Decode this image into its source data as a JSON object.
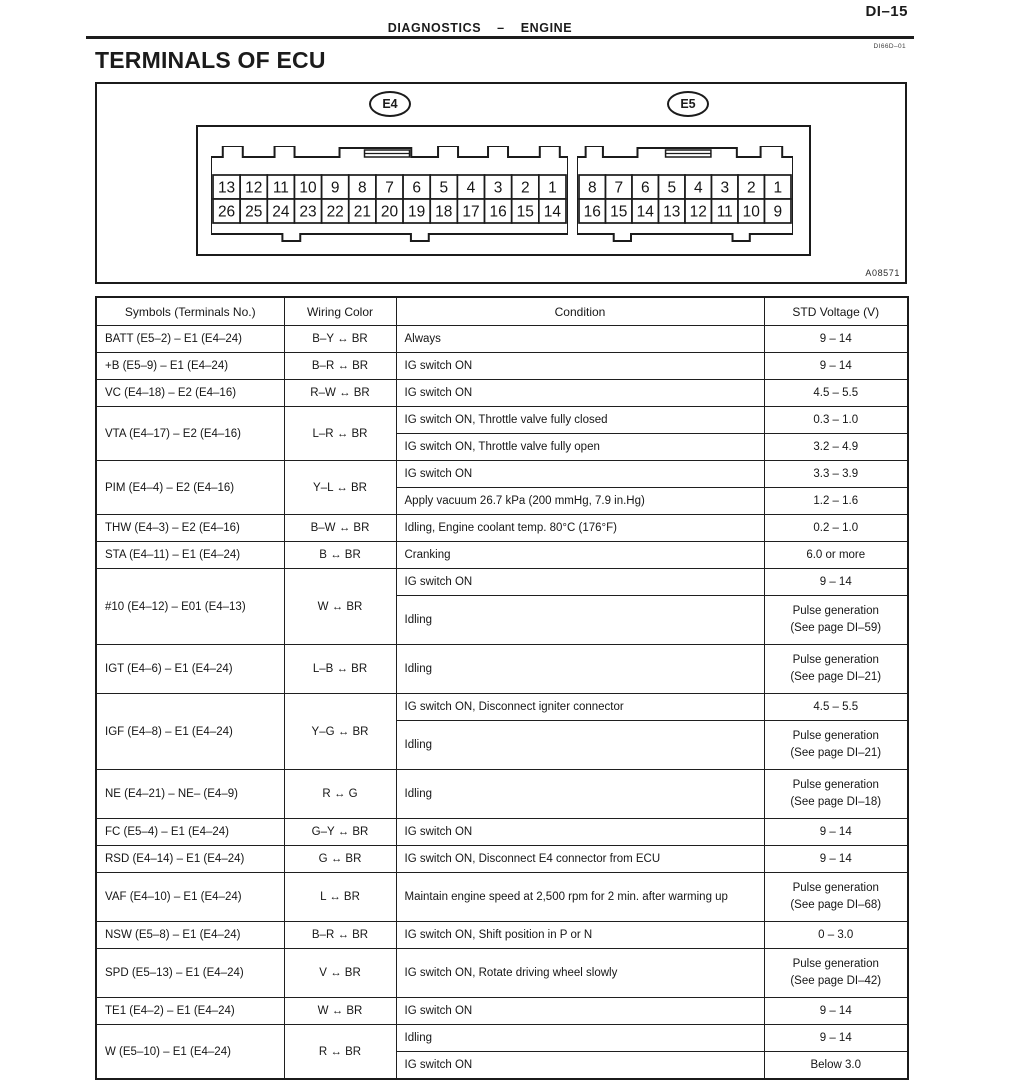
{
  "page": {
    "page_number": "DI–15",
    "section": "DIAGNOSTICS",
    "dash": "–",
    "subsection": "ENGINE",
    "doc_code": "DI66D–01",
    "title": "TERMINALS OF ECU"
  },
  "diagram": {
    "figure_code": "A08571",
    "connectors": [
      {
        "label": "E4",
        "rows": [
          [
            "13",
            "12",
            "11",
            "10",
            "9",
            "8",
            "7",
            "6",
            "5",
            "4",
            "3",
            "2",
            "1"
          ],
          [
            "26",
            "25",
            "24",
            "23",
            "22",
            "21",
            "20",
            "19",
            "18",
            "17",
            "16",
            "15",
            "14"
          ]
        ]
      },
      {
        "label": "E5",
        "rows": [
          [
            "8",
            "7",
            "6",
            "5",
            "4",
            "3",
            "2",
            "1"
          ],
          [
            "16",
            "15",
            "14",
            "13",
            "12",
            "11",
            "10",
            "9"
          ]
        ]
      }
    ]
  },
  "table": {
    "headers": [
      "Symbols (Terminals No.)",
      "Wiring Color",
      "Condition",
      "STD Voltage (V)"
    ],
    "rows": [
      {
        "symbol": "BATT (E5–2) – E1 (E4–24)",
        "wiring": "B–Y ↔ BR",
        "conditions": [
          {
            "condition": "Always",
            "voltage": [
              "9 – 14"
            ]
          }
        ]
      },
      {
        "symbol": "+B (E5–9) – E1 (E4–24)",
        "wiring": "B–R ↔ BR",
        "conditions": [
          {
            "condition": "IG switch ON",
            "voltage": [
              "9 – 14"
            ]
          }
        ]
      },
      {
        "symbol": "VC (E4–18) – E2 (E4–16)",
        "wiring": "R–W ↔ BR",
        "conditions": [
          {
            "condition": "IG switch ON",
            "voltage": [
              "4.5 – 5.5"
            ]
          }
        ]
      },
      {
        "symbol": "VTA (E4–17) – E2 (E4–16)",
        "wiring": "L–R ↔ BR",
        "conditions": [
          {
            "condition": "IG switch ON, Throttle valve fully closed",
            "voltage": [
              "0.3 – 1.0"
            ]
          },
          {
            "condition": "IG switch ON, Throttle valve fully open",
            "voltage": [
              "3.2 – 4.9"
            ]
          }
        ]
      },
      {
        "symbol": "PIM (E4–4) – E2 (E4–16)",
        "wiring": "Y–L ↔ BR",
        "conditions": [
          {
            "condition": "IG switch ON",
            "voltage": [
              "3.3 – 3.9"
            ]
          },
          {
            "condition": "Apply vacuum 26.7 kPa (200 mmHg, 7.9 in.Hg)",
            "voltage": [
              "1.2 – 1.6"
            ]
          }
        ]
      },
      {
        "symbol": "THW (E4–3) – E2 (E4–16)",
        "wiring": "B–W ↔ BR",
        "conditions": [
          {
            "condition": "Idling, Engine coolant temp. 80°C (176°F)",
            "voltage": [
              "0.2 – 1.0"
            ]
          }
        ]
      },
      {
        "symbol": "STA (E4–11) – E1 (E4–24)",
        "wiring": "B ↔ BR",
        "conditions": [
          {
            "condition": "Cranking",
            "voltage": [
              "6.0 or more"
            ]
          }
        ]
      },
      {
        "symbol": "#10 (E4–12) – E01 (E4–13)",
        "wiring": "W ↔ BR",
        "conditions": [
          {
            "condition": "IG switch ON",
            "voltage": [
              "9 – 14"
            ]
          },
          {
            "condition": "Idling",
            "voltage": [
              "Pulse generation",
              "(See page DI–59)"
            ]
          }
        ]
      },
      {
        "symbol": "IGT (E4–6) – E1 (E4–24)",
        "wiring": "L–B ↔ BR",
        "conditions": [
          {
            "condition": "Idling",
            "voltage": [
              "Pulse generation",
              "(See page DI–21)"
            ]
          }
        ]
      },
      {
        "symbol": "IGF (E4–8) – E1 (E4–24)",
        "wiring": "Y–G ↔ BR",
        "conditions": [
          {
            "condition": "IG switch ON, Disconnect igniter connector",
            "voltage": [
              "4.5 – 5.5"
            ]
          },
          {
            "condition": "Idling",
            "voltage": [
              "Pulse generation",
              "(See page DI–21)"
            ]
          }
        ]
      },
      {
        "symbol": "NE (E4–21) – NE– (E4–9)",
        "wiring": "R ↔ G",
        "conditions": [
          {
            "condition": "Idling",
            "voltage": [
              "Pulse generation",
              "(See page DI–18)"
            ]
          }
        ]
      },
      {
        "symbol": "FC (E5–4) – E1 (E4–24)",
        "wiring": "G–Y ↔ BR",
        "conditions": [
          {
            "condition": "IG switch ON",
            "voltage": [
              "9 – 14"
            ]
          }
        ]
      },
      {
        "symbol": "RSD (E4–14) – E1 (E4–24)",
        "wiring": "G ↔ BR",
        "conditions": [
          {
            "condition": "IG switch ON, Disconnect E4 connector from ECU",
            "voltage": [
              "9 – 14"
            ]
          }
        ]
      },
      {
        "symbol": "VAF (E4–10) – E1 (E4–24)",
        "wiring": "L ↔ BR",
        "conditions": [
          {
            "condition": "Maintain engine speed at 2,500 rpm for 2 min. after warming up",
            "voltage": [
              "Pulse generation",
              "(See page DI–68)"
            ]
          }
        ]
      },
      {
        "symbol": "NSW (E5–8) – E1 (E4–24)",
        "wiring": "B–R ↔ BR",
        "conditions": [
          {
            "condition": "IG switch ON, Shift position in P or N",
            "voltage": [
              "0 – 3.0"
            ]
          }
        ]
      },
      {
        "symbol": "SPD (E5–13) – E1 (E4–24)",
        "wiring": "V ↔ BR",
        "conditions": [
          {
            "condition": "IG switch ON, Rotate driving wheel slowly",
            "voltage": [
              "Pulse generation",
              "(See page DI–42)"
            ]
          }
        ]
      },
      {
        "symbol": "TE1 (E4–2) – E1 (E4–24)",
        "wiring": "W ↔ BR",
        "conditions": [
          {
            "condition": "IG switch ON",
            "voltage": [
              "9 – 14"
            ]
          }
        ]
      },
      {
        "symbol": "W (E5–10) – E1 (E4–24)",
        "wiring": "R ↔ BR",
        "conditions": [
          {
            "condition": "Idling",
            "voltage": [
              "9 – 14"
            ]
          },
          {
            "condition": "IG switch ON",
            "voltage": [
              "Below 3.0"
            ]
          }
        ]
      }
    ]
  }
}
